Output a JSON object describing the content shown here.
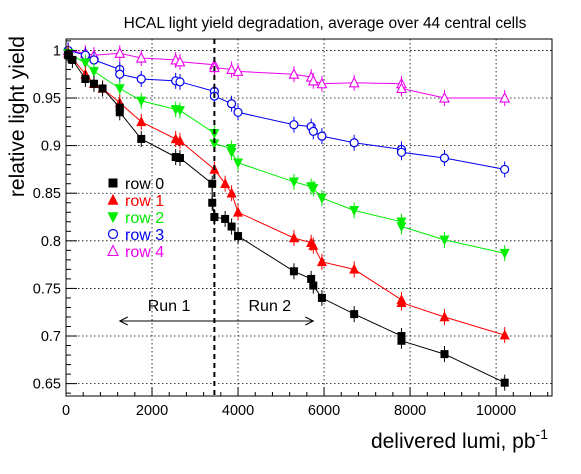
{
  "chart_data": {
    "type": "line",
    "title": "HCAL light yield degradation, average over 44 central cells",
    "xlabel": "delivered lumi, pb",
    "xlabel_sup": "-1",
    "ylabel": "relative light yield",
    "xlim": [
      0,
      11300
    ],
    "ylim": [
      0.637,
      1.012
    ],
    "xticks": [
      0,
      2000,
      4000,
      6000,
      8000,
      10000
    ],
    "xtick_labels": [
      "0",
      "2000",
      "4000",
      "6000",
      "8000",
      "10000"
    ],
    "yticks": [
      0.65,
      0.7,
      0.75,
      0.8,
      0.85,
      0.9,
      0.95,
      1.0
    ],
    "ytick_labels": [
      "0.65",
      "0.7",
      "0.75",
      "0.8",
      "0.85",
      "0.9",
      "0.95",
      "1"
    ],
    "grid": true,
    "legend_position": "left-middle",
    "run_boundary_x": 3450,
    "annotations": [
      {
        "text": "Run 1",
        "side": "left"
      },
      {
        "text": "Run 2",
        "side": "right"
      }
    ],
    "series": [
      {
        "name": "row 0",
        "color": "#000000",
        "marker": "square-filled",
        "x": [
          50,
          150,
          450,
          650,
          850,
          1250,
          1250,
          1750,
          2550,
          2650,
          3400,
          3400,
          3450,
          3700,
          3850,
          4000,
          5300,
          5700,
          5750,
          5950,
          6700,
          7800,
          7800,
          8800,
          10200
        ],
        "y": [
          0.995,
          0.99,
          0.97,
          0.965,
          0.96,
          0.94,
          0.935,
          0.907,
          0.888,
          0.887,
          0.86,
          0.84,
          0.825,
          0.823,
          0.815,
          0.805,
          0.768,
          0.76,
          0.753,
          0.74,
          0.723,
          0.7,
          0.695,
          0.681,
          0.651
        ]
      },
      {
        "name": "row 1",
        "color": "#ff0000",
        "marker": "triangle-up-filled",
        "x": [
          50,
          450,
          650,
          850,
          1250,
          1750,
          2550,
          2650,
          3450,
          3700,
          3850,
          4000,
          5300,
          5700,
          5750,
          5950,
          6700,
          7800,
          7800,
          8800,
          10200
        ],
        "y": [
          0.997,
          0.975,
          0.965,
          0.96,
          0.945,
          0.925,
          0.907,
          0.905,
          0.875,
          0.86,
          0.85,
          0.83,
          0.803,
          0.798,
          0.795,
          0.778,
          0.77,
          0.738,
          0.735,
          0.72,
          0.701
        ]
      },
      {
        "name": "row 2",
        "color": "#00ee00",
        "marker": "triangle-down-filled",
        "x": [
          50,
          450,
          650,
          1250,
          1750,
          2550,
          2650,
          3450,
          3450,
          3850,
          3850,
          4000,
          5300,
          5700,
          5750,
          5950,
          6700,
          7800,
          7800,
          8800,
          10200
        ],
        "y": [
          0.997,
          0.987,
          0.978,
          0.96,
          0.947,
          0.938,
          0.937,
          0.913,
          0.902,
          0.897,
          0.893,
          0.882,
          0.862,
          0.857,
          0.855,
          0.845,
          0.832,
          0.82,
          0.815,
          0.801,
          0.787
        ]
      },
      {
        "name": "row 3",
        "color": "#0000ee",
        "marker": "circle-open",
        "x": [
          50,
          450,
          650,
          1250,
          1250,
          1750,
          2550,
          2650,
          3450,
          3450,
          3850,
          4000,
          5300,
          5700,
          5750,
          5950,
          6700,
          7800,
          7800,
          8800,
          10200
        ],
        "y": [
          1.0,
          0.995,
          0.99,
          0.98,
          0.975,
          0.97,
          0.968,
          0.967,
          0.957,
          0.952,
          0.944,
          0.935,
          0.922,
          0.92,
          0.915,
          0.91,
          0.903,
          0.896,
          0.893,
          0.887,
          0.875
        ]
      },
      {
        "name": "row 4",
        "color": "#ee00ee",
        "marker": "triangle-up-open",
        "x": [
          50,
          450,
          650,
          1250,
          1750,
          2550,
          2650,
          3450,
          3450,
          3850,
          4000,
          5300,
          5700,
          5750,
          5950,
          6700,
          7800,
          7800,
          8800,
          10200
        ],
        "y": [
          1.0,
          0.997,
          0.995,
          0.997,
          0.992,
          0.99,
          0.988,
          0.985,
          0.982,
          0.98,
          0.978,
          0.975,
          0.972,
          0.968,
          0.965,
          0.966,
          0.965,
          0.96,
          0.95,
          0.95
        ]
      }
    ]
  }
}
